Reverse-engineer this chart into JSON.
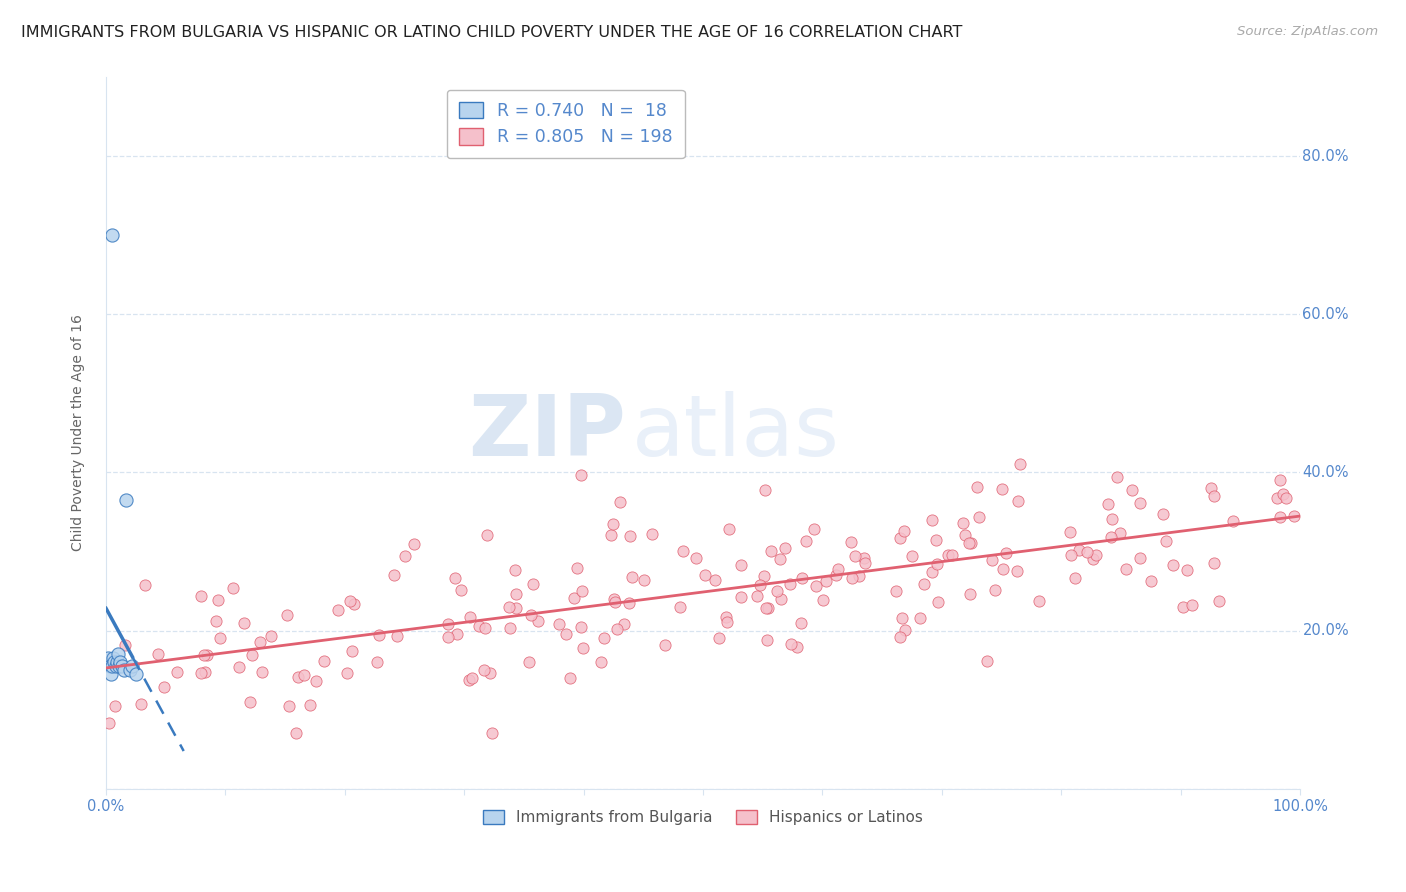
{
  "title": "IMMIGRANTS FROM BULGARIA VS HISPANIC OR LATINO CHILD POVERTY UNDER THE AGE OF 16 CORRELATION CHART",
  "source": "Source: ZipAtlas.com",
  "ylabel": "Child Poverty Under the Age of 16",
  "background_color": "#ffffff",
  "plot_bg_color": "#ffffff",
  "watermark_zip": "ZIP",
  "watermark_atlas": "atlas",
  "legend1_label": "R = 0.740   N =  18",
  "legend2_label": "R = 0.805   N = 198",
  "legend1_color": "#b8d4ee",
  "legend2_color": "#f5c0cb",
  "scatter1_color": "#b8d4ee",
  "scatter2_color": "#f5c0cb",
  "line1_color": "#3a7abf",
  "line2_color": "#e06070",
  "R1": 0.74,
  "N1": 18,
  "R2": 0.805,
  "N2": 198,
  "scatter1_size": 90,
  "scatter2_size": 65,
  "title_fontsize": 11.5,
  "axis_label_fontsize": 10,
  "tick_fontsize": 10.5,
  "legend_fontsize": 12.5,
  "grid_color": "#d8e4f0",
  "tick_color": "#5588cc"
}
